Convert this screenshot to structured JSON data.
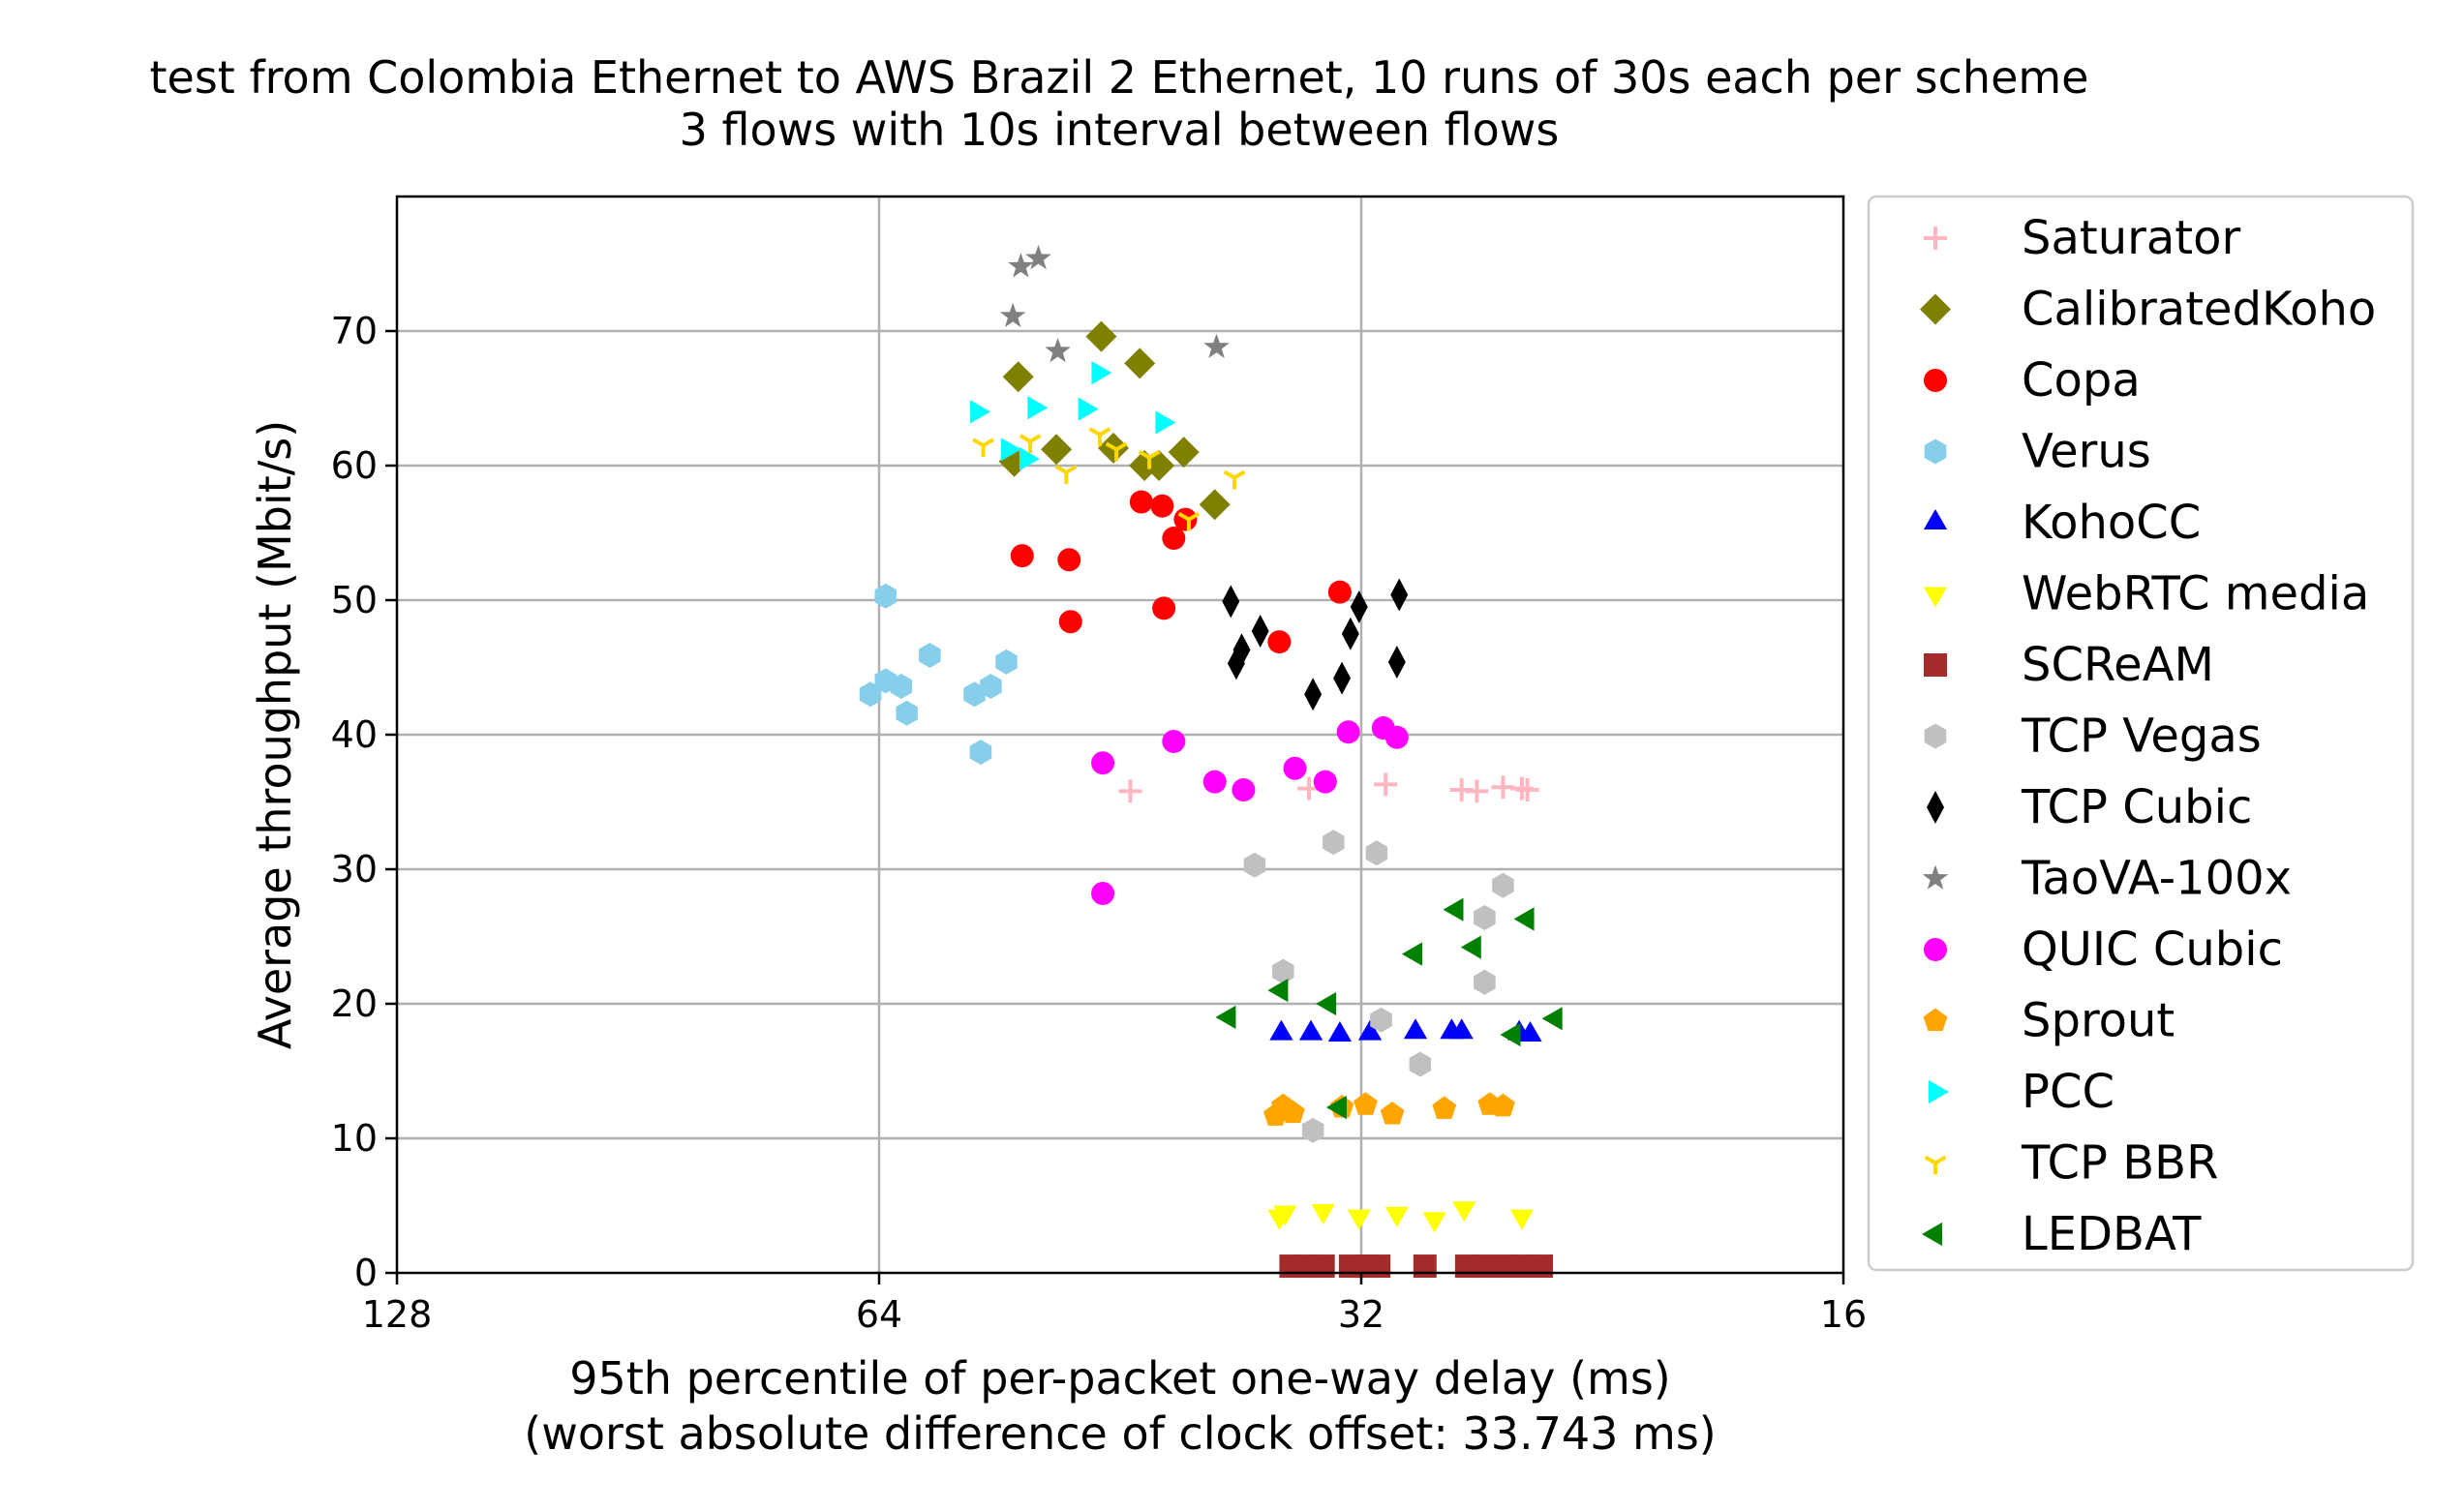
{
  "chart_data": {
    "type": "scatter",
    "title": "test from Colombia Ethernet to AWS Brazil 2 Ethernet, 10 runs of 30s each per scheme",
    "subtitle": "3 flows with 10s interval between flows",
    "xlabel": "95th percentile of per-packet one-way delay (ms)",
    "xlabel_sub": "(worst absolute difference of clock offset: 33.743 ms)",
    "ylabel": "Average throughput (Mbit/s)",
    "x_scale": "log2",
    "x_inverted": true,
    "xlim": [
      128,
      16
    ],
    "ylim": [
      0,
      80
    ],
    "x_ticks": [
      128,
      64,
      32,
      16
    ],
    "y_ticks": [
      0,
      10,
      20,
      30,
      40,
      50,
      60,
      70
    ],
    "grid": true,
    "legend_placement": "outside-right",
    "series": [
      {
        "name": "Saturator",
        "color": "#ffb6c1",
        "marker": "plus",
        "points": [
          [
            44.6,
            35.8
          ],
          [
            34.5,
            36.0
          ],
          [
            30.9,
            36.3
          ],
          [
            27.7,
            35.9
          ],
          [
            27.1,
            35.8
          ],
          [
            26.1,
            36.1
          ],
          [
            25.4,
            36.0
          ],
          [
            25.2,
            35.9
          ]
        ]
      },
      {
        "name": "CalibratedKoho",
        "color": "#808000",
        "marker": "diamond",
        "points": [
          [
            52.4,
            66.6
          ],
          [
            46.5,
            69.6
          ],
          [
            44.0,
            67.6
          ],
          [
            49.6,
            61.2
          ],
          [
            45.7,
            61.3
          ],
          [
            43.7,
            60.0
          ],
          [
            42.8,
            60.0
          ],
          [
            41.3,
            61.0
          ],
          [
            39.5,
            57.1
          ],
          [
            52.7,
            60.3
          ]
        ]
      },
      {
        "name": "Copa",
        "color": "#ff0000",
        "marker": "circle",
        "points": [
          [
            52.1,
            53.3
          ],
          [
            48.7,
            53.0
          ],
          [
            48.6,
            48.4
          ],
          [
            43.9,
            57.3
          ],
          [
            42.6,
            57.0
          ],
          [
            41.9,
            54.6
          ],
          [
            41.2,
            56.0
          ],
          [
            42.5,
            49.4
          ],
          [
            36.0,
            46.9
          ],
          [
            33.0,
            50.6
          ]
        ]
      },
      {
        "name": "Verus",
        "color": "#87ceeb",
        "marker": "hexagon",
        "points": [
          [
            63.4,
            50.3
          ],
          [
            64.8,
            43.0
          ],
          [
            63.4,
            44.0
          ],
          [
            62.0,
            43.6
          ],
          [
            61.5,
            41.6
          ],
          [
            59.5,
            45.9
          ],
          [
            55.8,
            43.0
          ],
          [
            54.5,
            43.6
          ],
          [
            53.3,
            45.4
          ],
          [
            55.3,
            38.7
          ]
        ]
      },
      {
        "name": "KohoCC",
        "color": "#0000ff",
        "marker": "triangle-up",
        "points": [
          [
            35.9,
            17.8
          ],
          [
            34.4,
            17.8
          ],
          [
            33.0,
            17.7
          ],
          [
            31.6,
            17.8
          ],
          [
            29.6,
            17.9
          ],
          [
            28.1,
            17.9
          ],
          [
            27.7,
            17.9
          ],
          [
            25.5,
            17.8
          ],
          [
            25.1,
            17.7
          ]
        ]
      },
      {
        "name": "WebRTC media",
        "color": "#ffff00",
        "marker": "triangle-down",
        "points": [
          [
            36.0,
            4.2
          ],
          [
            35.7,
            4.5
          ],
          [
            33.8,
            4.6
          ],
          [
            32.1,
            4.2
          ],
          [
            30.4,
            4.4
          ],
          [
            28.8,
            4.0
          ],
          [
            27.6,
            4.8
          ],
          [
            25.4,
            4.2
          ]
        ]
      },
      {
        "name": "SCReAM",
        "color": "#a52a2a",
        "marker": "square",
        "points": [
          [
            35.4,
            0.5
          ],
          [
            34.6,
            0.5
          ],
          [
            33.8,
            0.5
          ],
          [
            32.5,
            0.5
          ],
          [
            31.8,
            0.5
          ],
          [
            31.2,
            0.5
          ],
          [
            29.2,
            0.5
          ],
          [
            27.5,
            0.5
          ],
          [
            26.8,
            0.5
          ],
          [
            26.0,
            0.5
          ],
          [
            25.3,
            0.5
          ],
          [
            24.7,
            0.5
          ]
        ]
      },
      {
        "name": "TCP Vegas",
        "color": "#c0c0c0",
        "marker": "hexagon",
        "points": [
          [
            37.3,
            30.3
          ],
          [
            35.8,
            22.4
          ],
          [
            34.3,
            10.6
          ],
          [
            33.3,
            32.0
          ],
          [
            31.3,
            31.2
          ],
          [
            31.1,
            18.8
          ],
          [
            29.4,
            15.5
          ],
          [
            26.8,
            26.4
          ],
          [
            26.8,
            21.6
          ],
          [
            26.1,
            28.8
          ]
        ]
      },
      {
        "name": "TCP Cubic",
        "color": "#000000",
        "marker": "thin-diamond",
        "points": [
          [
            38.3,
            45.3
          ],
          [
            38.6,
            49.9
          ],
          [
            38.0,
            46.3
          ],
          [
            37.0,
            47.7
          ],
          [
            34.3,
            43.0
          ],
          [
            32.9,
            44.2
          ],
          [
            32.5,
            47.5
          ],
          [
            32.1,
            49.5
          ],
          [
            30.3,
            50.4
          ],
          [
            30.4,
            45.4
          ]
        ]
      },
      {
        "name": "TaoVA-100x",
        "color": "#808080",
        "marker": "star",
        "points": [
          [
            52.2,
            74.8
          ],
          [
            50.9,
            75.4
          ],
          [
            52.8,
            71.1
          ],
          [
            49.5,
            68.5
          ],
          [
            39.4,
            68.8
          ]
        ]
      },
      {
        "name": "QUIC Cubic",
        "color": "#ff00ff",
        "marker": "circle",
        "points": [
          [
            46.4,
            37.9
          ],
          [
            41.9,
            39.5
          ],
          [
            39.5,
            36.5
          ],
          [
            37.9,
            35.9
          ],
          [
            35.2,
            37.5
          ],
          [
            33.7,
            36.5
          ],
          [
            32.6,
            40.2
          ],
          [
            31.0,
            40.5
          ],
          [
            30.4,
            39.8
          ],
          [
            46.4,
            28.2
          ]
        ]
      },
      {
        "name": "Sprout",
        "color": "#ffa500",
        "marker": "pentagon",
        "points": [
          [
            36.2,
            11.7
          ],
          [
            35.8,
            12.4
          ],
          [
            35.3,
            11.9
          ],
          [
            32.9,
            12.3
          ],
          [
            31.8,
            12.5
          ],
          [
            30.6,
            11.8
          ],
          [
            28.4,
            12.2
          ],
          [
            26.6,
            12.5
          ],
          [
            26.1,
            12.4
          ]
        ]
      },
      {
        "name": "PCC",
        "color": "#00ffff",
        "marker": "triangle-right",
        "points": [
          [
            55.6,
            64.0
          ],
          [
            51.2,
            64.3
          ],
          [
            47.6,
            64.2
          ],
          [
            46.7,
            66.9
          ],
          [
            42.6,
            63.2
          ],
          [
            53.2,
            61.2
          ],
          [
            51.8,
            60.5
          ]
        ]
      },
      {
        "name": "TCP BBR",
        "color": "#ffd700",
        "marker": "tri-down",
        "points": [
          [
            55.1,
            61.5
          ],
          [
            51.5,
            61.8
          ],
          [
            48.9,
            59.5
          ],
          [
            46.6,
            62.3
          ],
          [
            45.5,
            61.2
          ],
          [
            43.4,
            60.6
          ],
          [
            41.0,
            56.0
          ],
          [
            38.4,
            59.1
          ]
        ]
      },
      {
        "name": "LEDBAT",
        "color": "#008000",
        "marker": "triangle-left",
        "points": [
          [
            38.7,
            19.0
          ],
          [
            35.9,
            21.0
          ],
          [
            33.5,
            20.0
          ],
          [
            33.0,
            12.3
          ],
          [
            29.6,
            23.7
          ],
          [
            27.9,
            27.0
          ],
          [
            27.2,
            24.2
          ],
          [
            25.7,
            17.7
          ],
          [
            25.2,
            26.3
          ],
          [
            24.2,
            18.9
          ]
        ]
      }
    ]
  }
}
